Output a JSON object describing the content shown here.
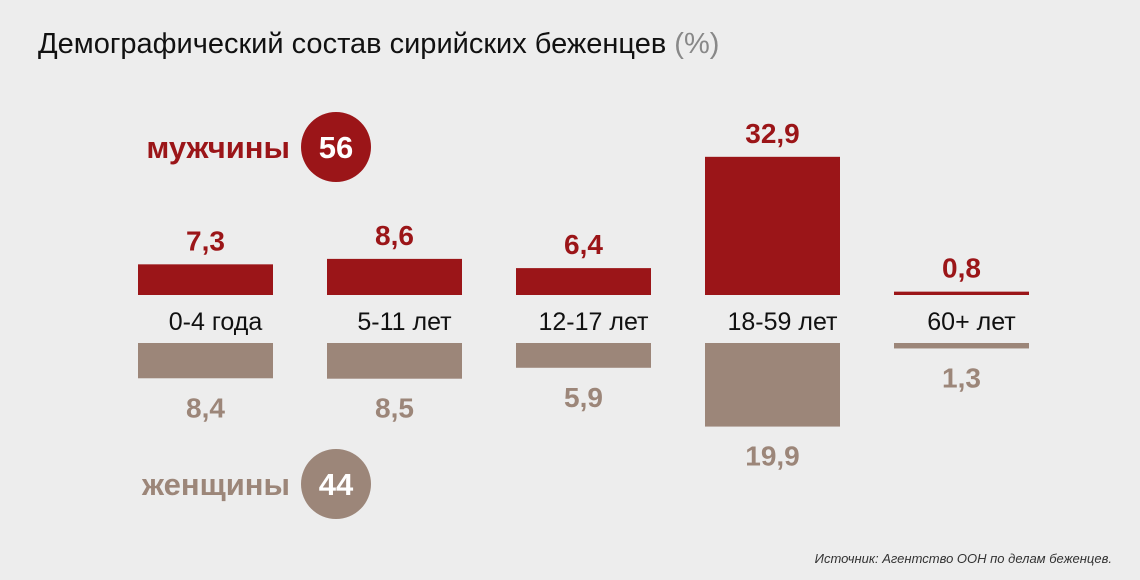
{
  "title": "Демографический состав сирийских беженцев",
  "title_unit": "(%)",
  "source": "Источник: Агентство ООН по делам беженцев.",
  "colors": {
    "male": "#9b1518",
    "female": "#9c8679",
    "background": "#ededed"
  },
  "chart_data": {
    "type": "bar",
    "title": "Демографический состав сирийских беженцев (%)",
    "categories": [
      "0-4 года",
      "5-11 лет",
      "12-17 лет",
      "18-59 лет",
      "60+ лет"
    ],
    "series": [
      {
        "name": "мужчины",
        "total": "56",
        "values": [
          7.3,
          8.6,
          6.4,
          32.9,
          0.8
        ],
        "labels": [
          "7,3",
          "8,6",
          "6,4",
          "32,9",
          "0,8"
        ]
      },
      {
        "name": "женщины",
        "total": "44",
        "values": [
          8.4,
          8.5,
          5.9,
          19.9,
          1.3
        ],
        "labels": [
          "8,4",
          "8,5",
          "5,9",
          "19,9",
          "1,3"
        ]
      }
    ],
    "xlabel": "",
    "ylabel": "%"
  }
}
